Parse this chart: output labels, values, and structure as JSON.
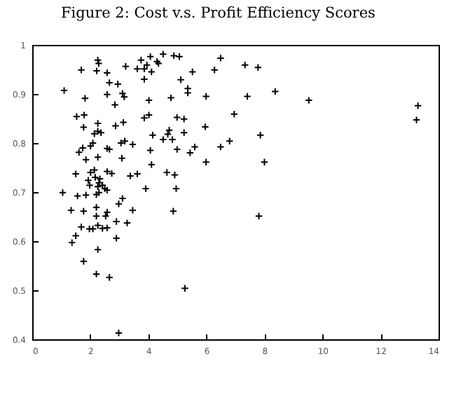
{
  "chart_data": {
    "type": "scatter",
    "title": "Figure 2: Cost v.s. Profit Efficiency Scores",
    "marker": "cross",
    "xlim": [
      0,
      14
    ],
    "ylim": [
      0.4,
      1
    ],
    "xticks": [
      0,
      2,
      4,
      6,
      8,
      10,
      12,
      14
    ],
    "yticks": [
      0.4,
      0.5,
      0.6,
      0.7,
      0.8,
      0.9,
      {
        "value": 1,
        "label": "1"
      }
    ],
    "series": [
      {
        "color": "#000000",
        "x": [
          2.26,
          2.29,
          1.69,
          2.22,
          2.58,
          3.22,
          3.75,
          4.07,
          3.62,
          3.86,
          3.95,
          4.11,
          3.86,
          4.51,
          2.66,
          2.95,
          1.1,
          2.58,
          3.11,
          3.17,
          1.82,
          4.02,
          2.85,
          1.53,
          1.79,
          2.26,
          1.77,
          3.14,
          2.87,
          3.86,
          4.02,
          2.26,
          2.14,
          2.37,
          4.15,
          2.09,
          2.01,
          1.74,
          1.61,
          2.58,
          2.66,
          3.06,
          3.19,
          3.46,
          4.07,
          1.85,
          2.26,
          3.09,
          4.11,
          1.5,
          2.01,
          2.14,
          2.58,
          2.74,
          3.38,
          3.62,
          1.93,
          2.3,
          2.17,
          2.33,
          1.98,
          2.26,
          2.42,
          2.5,
          2.58,
          1.05,
          1.56,
          1.85,
          2.21,
          2.3,
          3.91,
          3.11,
          2.98,
          2.21,
          1.34,
          1.77,
          2.58,
          3.46,
          2.21,
          2.53,
          2.9,
          3.27,
          1.69,
          2.26,
          1.97,
          2.09,
          2.42,
          2.58,
          1.5,
          1.37,
          2.9,
          2.26,
          1.77,
          2.21,
          2.66,
          2.98,
          4.88,
          5.07,
          4.3,
          4.35,
          6.49,
          5.52,
          6.28,
          7.33,
          7.78,
          5.12,
          5.36,
          5.36,
          4.78,
          5.99,
          7.41,
          8.37,
          6.96,
          4.99,
          5.23,
          5.96,
          4.72,
          4.67,
          5.23,
          4.51,
          4.83,
          7.86,
          4.99,
          5.6,
          5.44,
          6.49,
          6.8,
          5.99,
          8.0,
          4.64,
          4.91,
          4.96,
          4.86,
          7.81,
          5.26,
          9.53,
          13.29,
          13.24
        ],
        "values": [
          0.969,
          0.962,
          0.949,
          0.947,
          0.943,
          0.956,
          0.969,
          0.976,
          0.951,
          0.951,
          0.959,
          0.945,
          0.93,
          0.981,
          0.923,
          0.92,
          0.907,
          0.899,
          0.901,
          0.894,
          0.891,
          0.887,
          0.878,
          0.854,
          0.857,
          0.84,
          0.832,
          0.842,
          0.835,
          0.851,
          0.857,
          0.824,
          0.819,
          0.821,
          0.816,
          0.8,
          0.794,
          0.79,
          0.781,
          0.789,
          0.787,
          0.8,
          0.804,
          0.797,
          0.785,
          0.766,
          0.771,
          0.769,
          0.756,
          0.737,
          0.74,
          0.745,
          0.742,
          0.738,
          0.733,
          0.737,
          0.724,
          0.719,
          0.73,
          0.727,
          0.714,
          0.711,
          0.714,
          0.707,
          0.704,
          0.699,
          0.692,
          0.694,
          0.695,
          0.699,
          0.707,
          0.687,
          0.676,
          0.669,
          0.663,
          0.661,
          0.659,
          0.663,
          0.651,
          0.651,
          0.64,
          0.637,
          0.629,
          0.632,
          0.625,
          0.625,
          0.626,
          0.627,
          0.611,
          0.597,
          0.606,
          0.583,
          0.559,
          0.533,
          0.526,
          0.413,
          0.978,
          0.976,
          0.966,
          0.962,
          0.973,
          0.945,
          0.949,
          0.959,
          0.954,
          0.929,
          0.911,
          0.902,
          0.892,
          0.895,
          0.895,
          0.905,
          0.859,
          0.852,
          0.849,
          0.833,
          0.826,
          0.818,
          0.821,
          0.807,
          0.807,
          0.816,
          0.787,
          0.792,
          0.78,
          0.792,
          0.804,
          0.761,
          0.761,
          0.74,
          0.735,
          0.707,
          0.661,
          0.651,
          0.504,
          0.887,
          0.876,
          0.847
        ]
      }
    ]
  }
}
